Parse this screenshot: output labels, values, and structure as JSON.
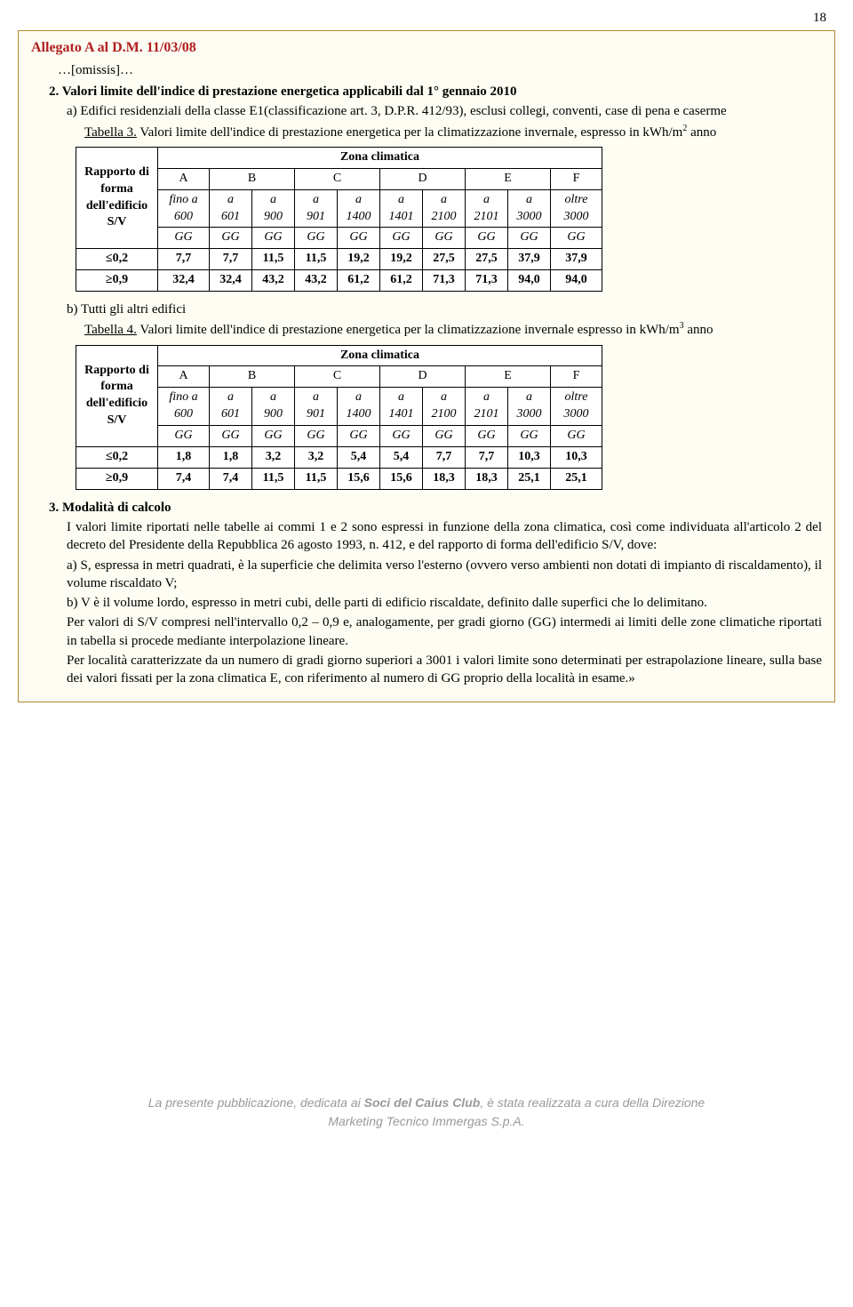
{
  "page_number": "18",
  "doc_title": "Allegato A al D.M. 11/03/08",
  "omissis": "…[omissis]…",
  "sec2": {
    "num": "2.",
    "title": " Valori limite dell'indice di prestazione energetica applicabili dal 1° gennaio 2010",
    "a_line": "a) Edifici residenziali della classe E1(classificazione art. 3, D.P.R. 412/93), esclusi collegi, conventi, case di pena e caserme",
    "tab3_ref": "Tabella 3.",
    "tab3_desc": " Valori limite dell'indice di prestazione energetica per la climatizzazione invernale, espresso in kWh/m",
    "tab3_sup": "2",
    "tab3_tail": " anno",
    "b_line": "b) Tutti gli altri edifici",
    "tab4_ref": "Tabella 4.",
    "tab4_desc": " Valori limite dell'indice di prestazione energetica per la climatizzazione invernale espresso in kWh/m",
    "tab4_sup": "3",
    "tab4_tail": " anno"
  },
  "table_common": {
    "zona": "Zona climatica",
    "ratio": "Rapporto di forma dell'edificio S/V",
    "cols": [
      "A",
      "B",
      "C",
      "D",
      "E",
      "F"
    ],
    "sub_labels": [
      "fino a",
      "a",
      "a",
      "a",
      "a",
      "a",
      "a",
      "a",
      "a",
      "oltre"
    ],
    "sub_vals": [
      "600",
      "601",
      "900",
      "901",
      "1400",
      "1401",
      "2100",
      "2101",
      "3000",
      "3000"
    ],
    "gg": "GG",
    "row1_lbl": "≤0,2",
    "row2_lbl": "≥0,9"
  },
  "table3": {
    "row1": [
      "7,7",
      "7,7",
      "11,5",
      "11,5",
      "19,2",
      "19,2",
      "27,5",
      "27,5",
      "37,9",
      "37,9"
    ],
    "row2": [
      "32,4",
      "32,4",
      "43,2",
      "43,2",
      "61,2",
      "61,2",
      "71,3",
      "71,3",
      "94,0",
      "94,0"
    ]
  },
  "table4": {
    "row1": [
      "1,8",
      "1,8",
      "3,2",
      "3,2",
      "5,4",
      "5,4",
      "7,7",
      "7,7",
      "10,3",
      "10,3"
    ],
    "row2": [
      "7,4",
      "7,4",
      "11,5",
      "11,5",
      "15,6",
      "15,6",
      "18,3",
      "18,3",
      "25,1",
      "25,1"
    ]
  },
  "sec3": {
    "num": "3.",
    "title": " Modalità di calcolo",
    "p1": "I valori limite riportati nelle tabelle ai commi 1 e 2 sono espressi in funzione della zona climatica, così come individuata all'articolo 2 del decreto del Presidente della Repubblica 26 agosto 1993, n. 412, e del rapporto di forma dell'edificio S/V, dove:",
    "pa": "a) S, espressa in metri quadrati, è la superficie che delimita verso l'esterno (ovvero verso ambienti non dotati di impianto di riscaldamento), il volume riscaldato V;",
    "pb": "b) V è il volume lordo, espresso in metri cubi, delle parti di edificio riscaldate, definito dalle superfici che lo delimitano.",
    "p2": "Per valori di S/V compresi nell'intervallo 0,2 – 0,9 e, analogamente, per gradi giorno (GG) intermedi ai limiti delle zone climatiche riportati in tabella si procede mediante interpolazione lineare.",
    "p3": "Per località caratterizzate da un numero di gradi giorno superiori a 3001 i valori limite sono determinati per estrapolazione lineare, sulla base dei valori fissati per la zona climatica E, con riferimento al numero di GG proprio della località in esame.»"
  },
  "footer": {
    "l1a": "La presente pubblicazione, dedicata ai ",
    "l1b": "Soci del Caius Club",
    "l1c": ", è stata realizzata a cura della Direzione",
    "l2": "Marketing Tecnico Immergas S.p.A."
  }
}
